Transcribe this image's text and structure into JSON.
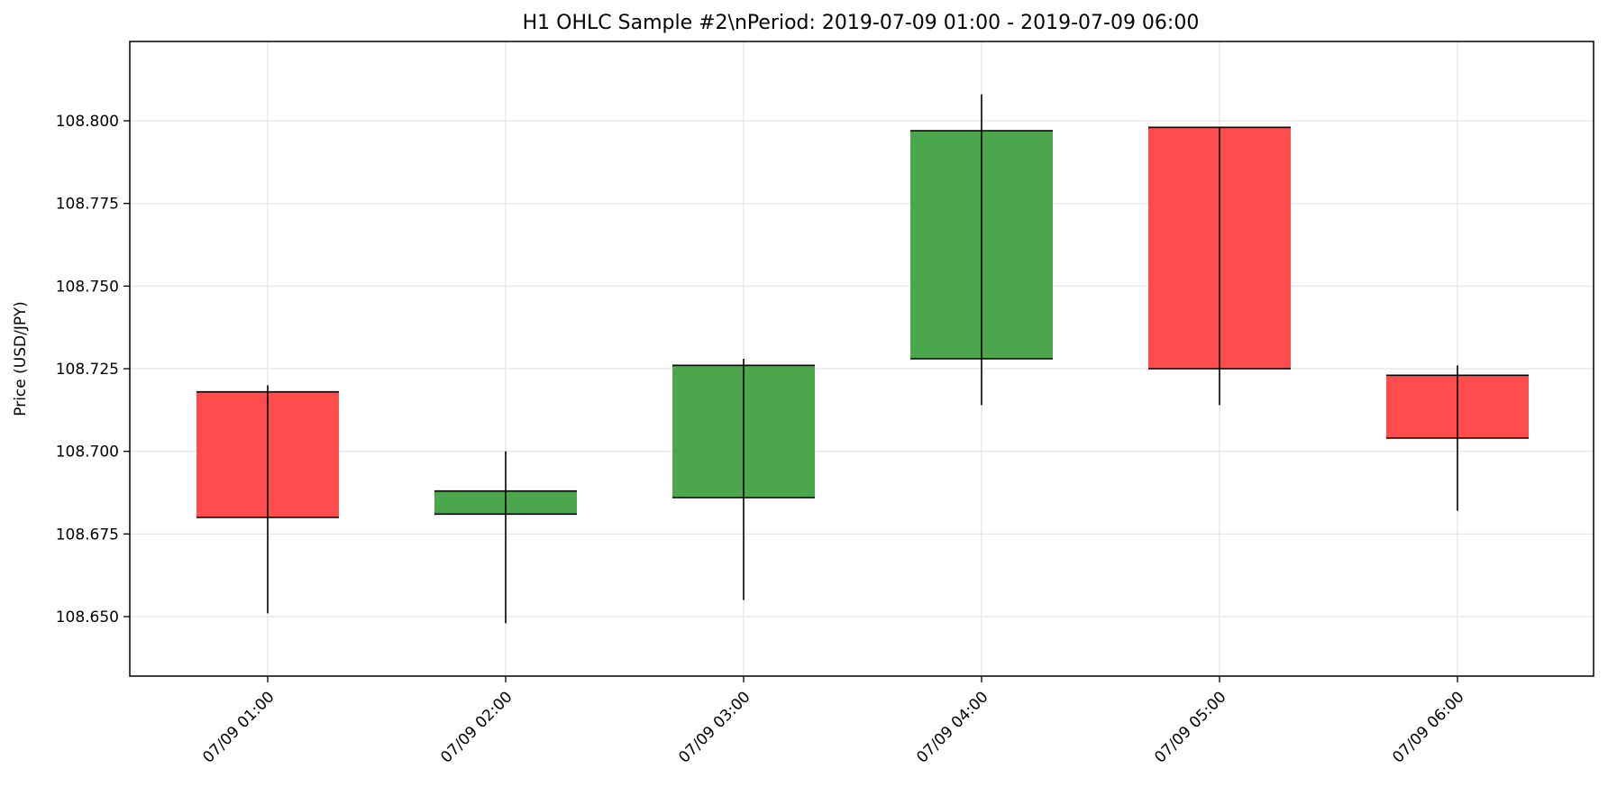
{
  "chart_data": {
    "type": "candlestick",
    "title": "H1 OHLC Sample #2\\nPeriod: 2019-07-09 01:00 - 2019-07-09 06:00",
    "xlabel": "",
    "ylabel": "Price (USD/JPY)",
    "ylim": [
      108.632,
      108.824
    ],
    "yticks": [
      "108.650",
      "108.675",
      "108.700",
      "108.725",
      "108.750",
      "108.775",
      "108.800"
    ],
    "grid": true,
    "colors": {
      "up": "#4ca64c",
      "down": "#ff4c4c",
      "edge": "#000000"
    },
    "categories": [
      "07/09 01:00",
      "07/09 02:00",
      "07/09 03:00",
      "07/09 04:00",
      "07/09 05:00",
      "07/09 06:00"
    ],
    "open": [
      108.718,
      108.681,
      108.686,
      108.728,
      108.798,
      108.723
    ],
    "high": [
      108.72,
      108.7,
      108.728,
      108.808,
      108.798,
      108.726
    ],
    "low": [
      108.651,
      108.648,
      108.655,
      108.714,
      108.714,
      108.682
    ],
    "close": [
      108.68,
      108.688,
      108.726,
      108.797,
      108.725,
      108.704
    ]
  }
}
